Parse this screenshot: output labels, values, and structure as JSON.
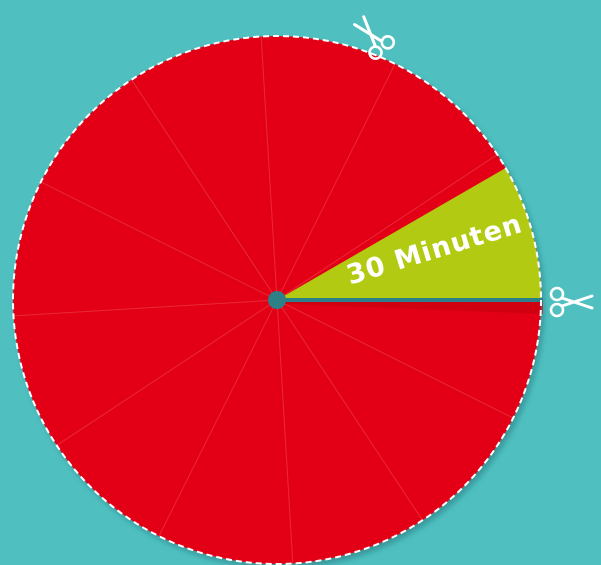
{
  "wheel": {
    "segment_count": 12,
    "highlight_label": "30 Minuten",
    "highlight_fraction": 0.0833,
    "colors": {
      "background": "#4fbfc0",
      "disc": "#e30613",
      "highlight": "#b2cb12",
      "divider": "#ef4b4f",
      "dashed_outline": "#ffffff",
      "center_pin": "#2f7f86",
      "slit": "#2a7f8a",
      "label": "#ffffff"
    }
  },
  "icons": {
    "top": "scissors-icon",
    "right": "scissors-icon"
  }
}
